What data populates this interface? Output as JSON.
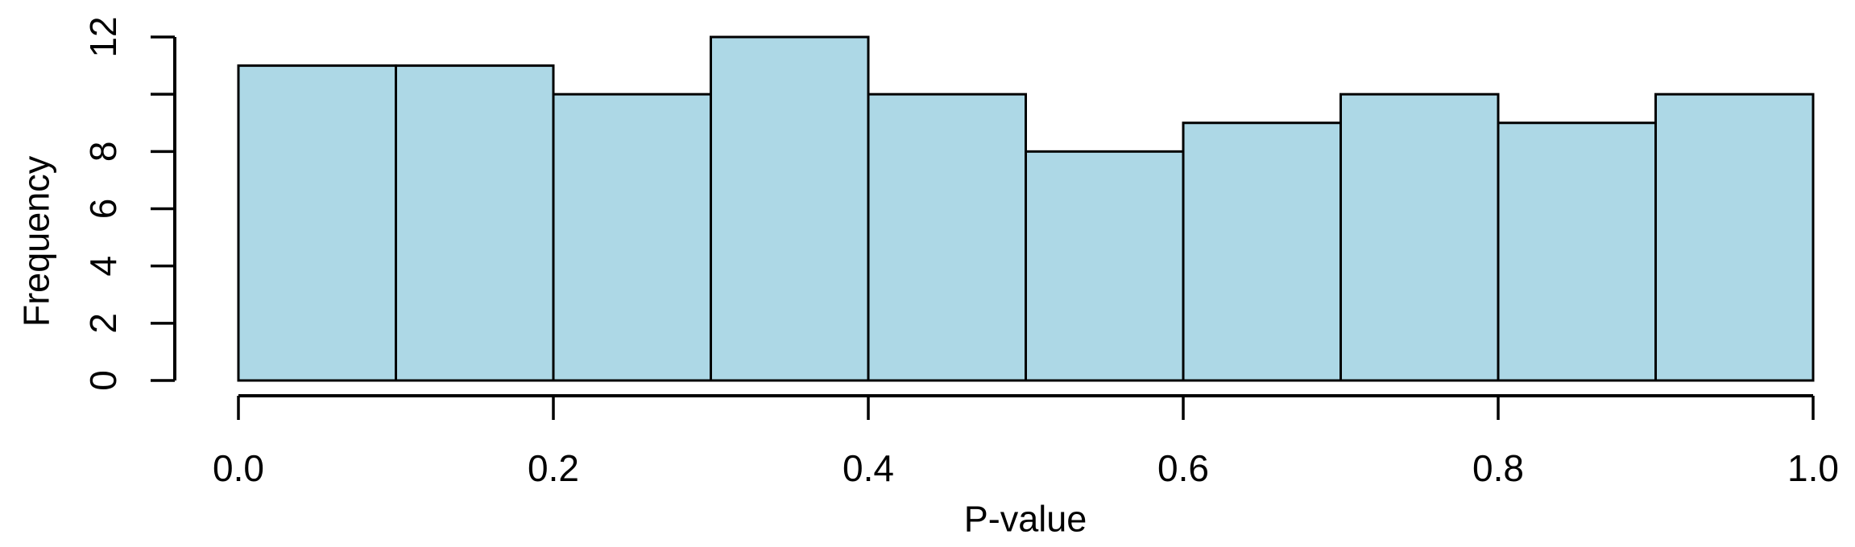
{
  "chart_data": {
    "type": "bar",
    "subtype": "histogram",
    "title": "",
    "xlabel": "P-value",
    "ylabel": "Frequency",
    "bin_edges": [
      0.0,
      0.1,
      0.2,
      0.3,
      0.4,
      0.5,
      0.6,
      0.7,
      0.8,
      0.9,
      1.0
    ],
    "categories": [
      "0.0-0.1",
      "0.1-0.2",
      "0.2-0.3",
      "0.3-0.4",
      "0.4-0.5",
      "0.5-0.6",
      "0.6-0.7",
      "0.7-0.8",
      "0.8-0.9",
      "0.9-1.0"
    ],
    "values": [
      11,
      11,
      10,
      12,
      10,
      8,
      9,
      10,
      9,
      10
    ],
    "xlim": [
      0.0,
      1.0
    ],
    "ylim": [
      0,
      12
    ],
    "x_ticks": [
      0.0,
      0.2,
      0.4,
      0.6,
      0.8,
      1.0
    ],
    "x_tick_labels": [
      "0.0",
      "0.2",
      "0.4",
      "0.6",
      "0.8",
      "1.0"
    ],
    "y_ticks": [
      0,
      2,
      4,
      6,
      8,
      10,
      12
    ],
    "y_tick_labels": [
      "0",
      "2",
      "4",
      "6",
      "8",
      "",
      "12"
    ],
    "grid": false,
    "legend": null,
    "colors": {
      "bar_fill": "#ADD8E6",
      "bar_stroke": "#000000",
      "axis": "#000000",
      "text": "#000000",
      "background": "#FFFFFF"
    }
  }
}
